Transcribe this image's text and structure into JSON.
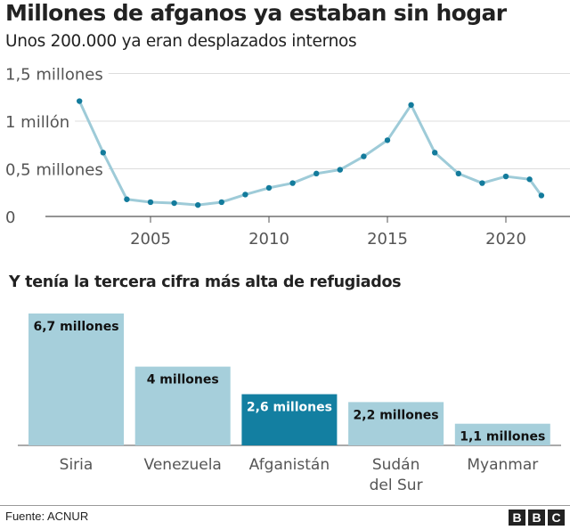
{
  "title": "Millones de afganos ya estaban sin hogar",
  "subtitle": "Unos 200.000 ya eran desplazados internos",
  "subtitle2": "Y tenía la tercera cifra más alta de refugiados",
  "source": "Fuente: ACNUR",
  "logo": [
    "B",
    "B",
    "C"
  ],
  "colors": {
    "line": "#9ecbd8",
    "point": "#137b9c",
    "bar": "#a6cfdb",
    "bar_highlight": "#137fa1"
  },
  "chart_data": [
    {
      "type": "line",
      "x": [
        2002,
        2003,
        2004,
        2005,
        2006,
        2007,
        2008,
        2009,
        2010,
        2011,
        2012,
        2013,
        2014,
        2015,
        2016,
        2017,
        2018,
        2019,
        2020,
        2021,
        2021.5
      ],
      "values": [
        1.21,
        0.67,
        0.18,
        0.15,
        0.14,
        0.12,
        0.15,
        0.23,
        0.3,
        0.35,
        0.45,
        0.49,
        0.63,
        0.8,
        1.17,
        0.67,
        0.45,
        0.35,
        0.42,
        0.39,
        0.22
      ],
      "ylim": [
        0,
        1.5
      ],
      "xlim": [
        2000.7,
        2022.5
      ],
      "yticks": [
        {
          "v": 0,
          "label": "0"
        },
        {
          "v": 0.5,
          "label": "0,5 millones"
        },
        {
          "v": 1,
          "label": "1 millón"
        },
        {
          "v": 1.5,
          "label": "1,5 millones"
        }
      ],
      "xticks": [
        {
          "v": 2005,
          "label": "2005"
        },
        {
          "v": 2010,
          "label": "2010"
        },
        {
          "v": 2015,
          "label": "2015"
        },
        {
          "v": 2020,
          "label": "2020"
        }
      ],
      "grid": true
    },
    {
      "type": "bar",
      "categories": [
        [
          "Siria"
        ],
        [
          "Venezuela"
        ],
        [
          "Afganistán"
        ],
        [
          "Sudán",
          "del Sur"
        ],
        [
          "Myanmar"
        ]
      ],
      "values": [
        6.7,
        4,
        2.6,
        2.2,
        1.1
      ],
      "data_labels": [
        "6,7 millones",
        "4 millones",
        "2,6 millones",
        "2,2 millones",
        "1,1 millones"
      ],
      "highlight": 2
    }
  ]
}
